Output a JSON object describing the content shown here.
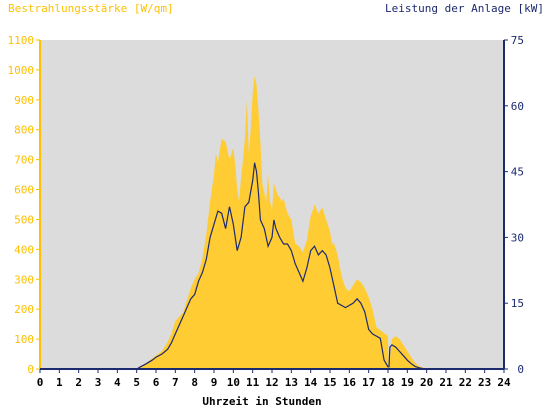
{
  "chart_data": {
    "type": "area",
    "ylabel_left": "Bestrahlungsstärke [W/qm]",
    "ylabel_right": "Leistung der Anlage [kW]",
    "xlabel": "Uhrzeit in Stunden",
    "x_ticks": [
      "0",
      "1",
      "2",
      "3",
      "4",
      "5",
      "6",
      "7",
      "8",
      "9",
      "10",
      "11",
      "12",
      "13",
      "14",
      "15",
      "16",
      "17",
      "18",
      "19",
      "20",
      "21",
      "22",
      "23",
      "24"
    ],
    "y_left_ticks": [
      "0",
      "100",
      "200",
      "300",
      "400",
      "500",
      "600",
      "700",
      "800",
      "900",
      "1000",
      "1100"
    ],
    "y_right_ticks": [
      "0",
      "15",
      "30",
      "45",
      "60",
      "75"
    ],
    "xlim": [
      0,
      24
    ],
    "ylim_left": [
      0,
      1100
    ],
    "ylim_right": [
      0,
      75
    ],
    "grid": false,
    "colors": {
      "plot_background": "#dcdcdc",
      "irradiance_fill": "#ffcc33",
      "power_line": "#1c2a6e",
      "left_axis_text": "#ffc000",
      "right_axis_text": "#1c2a6e"
    },
    "series": [
      {
        "axis": "left",
        "style": "area",
        "x": [
          0,
          5.0,
          5.2,
          5.5,
          5.8,
          6.0,
          6.3,
          6.6,
          6.8,
          7.0,
          7.2,
          7.4,
          7.6,
          7.8,
          8.0,
          8.2,
          8.4,
          8.6,
          8.8,
          9.0,
          9.1,
          9.2,
          9.4,
          9.6,
          9.8,
          10.0,
          10.1,
          10.2,
          10.3,
          10.4,
          10.5,
          10.6,
          10.7,
          10.8,
          10.9,
          11.0,
          11.1,
          11.2,
          11.3,
          11.4,
          11.5,
          11.6,
          11.7,
          11.8,
          11.9,
          12.0,
          12.1,
          12.2,
          12.3,
          12.4,
          12.5,
          12.6,
          12.8,
          13.0,
          13.2,
          13.4,
          13.6,
          13.8,
          14.0,
          14.2,
          14.4,
          14.6,
          14.8,
          15.0,
          15.1,
          15.2,
          15.4,
          15.6,
          15.8,
          16.0,
          16.2,
          16.4,
          16.6,
          16.8,
          17.0,
          17.2,
          17.4,
          17.6,
          17.8,
          18.0,
          18.02,
          18.05,
          18.2,
          18.4,
          18.6,
          18.8,
          19.0,
          19.2,
          19.4,
          19.6,
          19.8,
          20.0,
          20.2,
          24
        ],
        "y": [
          0,
          0,
          8,
          20,
          35,
          45,
          60,
          90,
          120,
          160,
          175,
          190,
          230,
          270,
          300,
          320,
          370,
          450,
          560,
          650,
          720,
          690,
          770,
          760,
          700,
          740,
          680,
          600,
          560,
          640,
          700,
          770,
          900,
          720,
          800,
          920,
          980,
          950,
          860,
          760,
          620,
          590,
          560,
          650,
          560,
          530,
          620,
          600,
          580,
          575,
          560,
          570,
          520,
          500,
          420,
          410,
          390,
          430,
          510,
          550,
          520,
          540,
          500,
          460,
          420,
          420,
          380,
          310,
          270,
          260,
          280,
          300,
          290,
          270,
          240,
          200,
          140,
          130,
          120,
          110,
          40,
          5,
          100,
          110,
          100,
          80,
          60,
          40,
          20,
          10,
          5,
          2,
          0,
          0
        ]
      },
      {
        "axis": "right",
        "style": "line",
        "x": [
          0,
          5.0,
          5.2,
          5.5,
          5.8,
          6.0,
          6.3,
          6.6,
          6.8,
          7.0,
          7.2,
          7.4,
          7.6,
          7.8,
          8.0,
          8.2,
          8.4,
          8.6,
          8.8,
          9.0,
          9.2,
          9.4,
          9.6,
          9.8,
          10.0,
          10.2,
          10.4,
          10.6,
          10.8,
          11.0,
          11.1,
          11.2,
          11.3,
          11.4,
          11.6,
          11.8,
          12.0,
          12.1,
          12.2,
          12.3,
          12.4,
          12.6,
          12.8,
          13.0,
          13.2,
          13.4,
          13.6,
          13.8,
          14.0,
          14.2,
          14.4,
          14.6,
          14.8,
          15.0,
          15.2,
          15.4,
          15.6,
          15.8,
          16.0,
          16.2,
          16.4,
          16.6,
          16.8,
          17.0,
          17.2,
          17.4,
          17.6,
          17.8,
          18.0,
          18.05,
          18.1,
          18.2,
          18.4,
          18.6,
          18.8,
          19.0,
          19.2,
          19.4,
          19.6,
          19.8,
          20.0,
          20.2,
          24
        ],
        "y": [
          0,
          0,
          0.5,
          1.2,
          2.0,
          2.7,
          3.4,
          4.5,
          6.0,
          8.0,
          10.0,
          12.0,
          14.0,
          16.0,
          17.0,
          20.0,
          22.0,
          25.0,
          30.0,
          33.0,
          36.0,
          35.5,
          32.0,
          37.0,
          33.0,
          27.0,
          30.0,
          37.0,
          38.0,
          43.0,
          47.0,
          45.0,
          40.0,
          34.0,
          32.0,
          28.0,
          30.0,
          34.0,
          32.0,
          31.0,
          30.0,
          28.5,
          28.5,
          27.0,
          24.0,
          22.0,
          20.0,
          23.0,
          27.0,
          28.0,
          26.0,
          27.0,
          26.0,
          23.0,
          19.0,
          15.0,
          14.5,
          14.0,
          14.5,
          15.0,
          16.0,
          15.0,
          13.0,
          9.0,
          8.0,
          7.5,
          7.0,
          2.0,
          0.5,
          0.5,
          5.0,
          5.5,
          5.0,
          4.0,
          3.0,
          2.0,
          1.2,
          0.6,
          0.3,
          0.1,
          0,
          0,
          0
        ]
      }
    ]
  }
}
